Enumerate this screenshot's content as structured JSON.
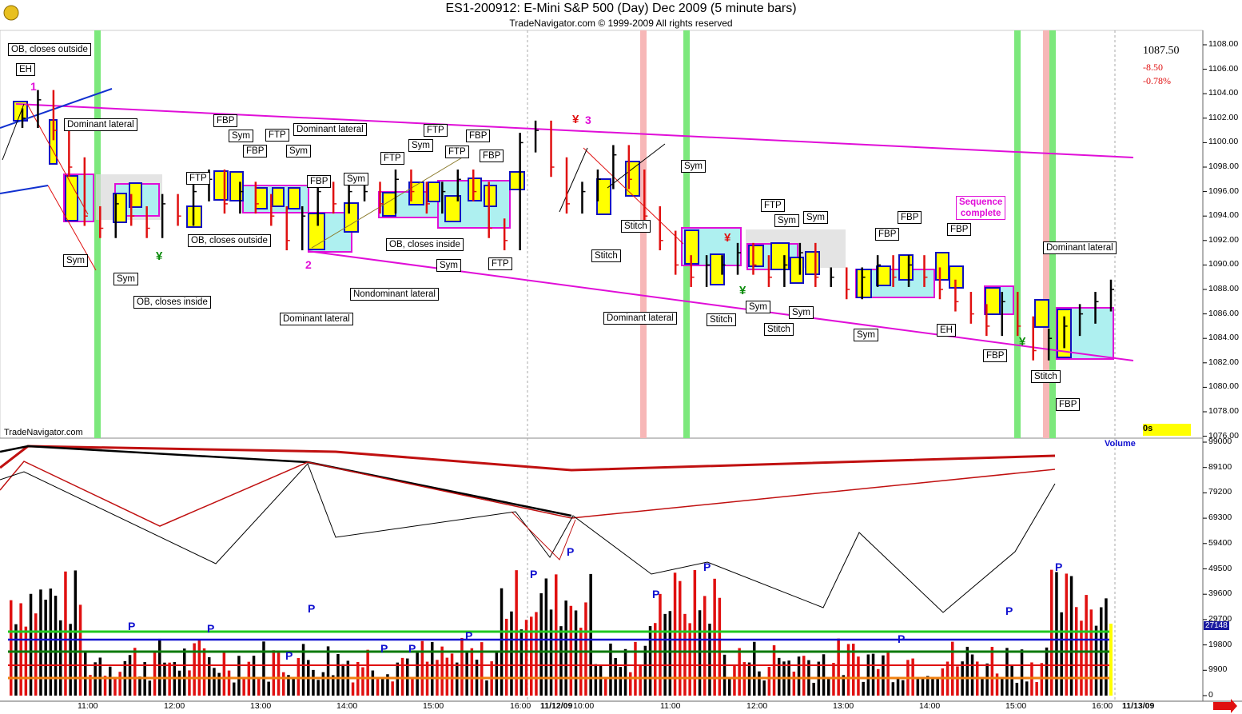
{
  "title": "ES1-200912:  E-Mini S&P 500 (Day) Dec 2009  (5 minute bars)",
  "subtitle": "TradeNavigator.com © 1999-2009 All rights reserved",
  "watermark": "TradeNavigator.com",
  "last_price": "1087.50",
  "net_change": "-8.50",
  "pct_change": "-0.78%",
  "timer_box": "0s",
  "volume_label": "Volume",
  "volume_current": "27148",
  "colors": {
    "up_bar": "#000000",
    "down_bar": "#e01010",
    "lateral_line": "#e00ed8",
    "highlight_green": "#7ce87c",
    "highlight_pink": "#f7b7b7",
    "box_fill": "#aef0f0",
    "box_yellow": "#ffff00"
  },
  "annotations": {
    "a1": "OB, closes outside",
    "a2": "EH",
    "a3": "Dominant lateral",
    "a4": "FBP",
    "a5": "Sym",
    "a6": "FBP",
    "a7": "FTP",
    "a8": "Sym",
    "a9": "Dominant lateral",
    "a10": "FTP",
    "a11": "FBP",
    "a12": "Sym",
    "a13": "FTP",
    "a14": "FTP",
    "a15": "Sym",
    "a16": "FTP",
    "a17": "FBP",
    "a18": "FBP",
    "a19": "OB, closes outside",
    "a20": "OB, closes inside",
    "a21": "Sym",
    "a22": "Sym",
    "a23": "Sym",
    "a24": "FTP",
    "a25": "OB, closes inside",
    "a26": "Nondominant lateral",
    "a27": "Dominant lateral",
    "a28": "Stitch",
    "a29": "Stitch",
    "a30": "Dominant lateral",
    "a31": "Sym",
    "a32": "FTP",
    "a33": "Sym",
    "a34": "Sym",
    "a35": "Sym",
    "a36": "Stitch",
    "a37": "Sym",
    "a38": "Stitch",
    "a39": "FBP",
    "a40": "FBP",
    "a41": "FBP",
    "a42": "Sym",
    "a43": "EH",
    "a44": "FBP",
    "a45": "Dominant lateral",
    "a46": "Stitch",
    "a47": "FBP"
  },
  "sequence_note": [
    "Sequence",
    "complete"
  ],
  "point_labels": {
    "p1": "1",
    "p2": "2",
    "p3": "3"
  },
  "yen_marks": {
    "y1": "¥",
    "y2": "¥",
    "y3": "¥",
    "y4": "¥",
    "y5": "¥"
  },
  "vol_peaks": {
    "v1": "P",
    "v2": "P",
    "v3": "P",
    "v4": "P",
    "v5": "P",
    "v6": "P",
    "v7": "P",
    "v8": "P",
    "v9": "P",
    "v10": "P",
    "v11": "P",
    "v12": "P",
    "v13": "P",
    "v14": "P",
    "v15": "P"
  },
  "chart_data": {
    "type": "line",
    "price_axis_ticks": [
      "1108.00",
      "1106.00",
      "1104.00",
      "1102.00",
      "1100.00",
      "1098.00",
      "1096.00",
      "1094.00",
      "1092.00",
      "1090.00",
      "1088.00",
      "1086.00",
      "1084.00",
      "1082.00",
      "1080.00",
      "1078.00",
      "1076.00"
    ],
    "volume_axis_ticks": [
      "99000",
      "89100",
      "79200",
      "69300",
      "59400",
      "49500",
      "39600",
      "29700",
      "19800",
      "9900",
      "0"
    ],
    "time_labels": [
      "11:00",
      "12:00",
      "13:00",
      "14:00",
      "15:00",
      "16:00",
      "11/12/09",
      "10:00",
      "11:00",
      "12:00",
      "13:00",
      "14:00",
      "15:00",
      "16:00",
      "11/13/09"
    ],
    "ylim": [
      1076,
      1108
    ],
    "volume_ylim": [
      0,
      99000
    ],
    "series_approx_price": [
      1102,
      1103.5,
      1101,
      1098,
      1094,
      1093,
      1095,
      1094,
      1093,
      1095,
      1094,
      1096,
      1097,
      1095,
      1096,
      1095,
      1094,
      1092,
      1094,
      1096,
      1095,
      1096,
      1096,
      1095,
      1097,
      1096,
      1095,
      1096,
      1097,
      1096,
      1093,
      1092,
      1100,
      1101,
      1098,
      1095,
      1096,
      1097,
      1099,
      1097,
      1094,
      1092,
      1090,
      1089,
      1090,
      1090,
      1091,
      1090,
      1089,
      1090,
      1091,
      1089,
      1089,
      1088,
      1089,
      1090,
      1089,
      1090,
      1089,
      1088,
      1087,
      1086,
      1085,
      1087,
      1085,
      1083,
      1084,
      1085,
      1086,
      1087,
      1088
    ]
  }
}
